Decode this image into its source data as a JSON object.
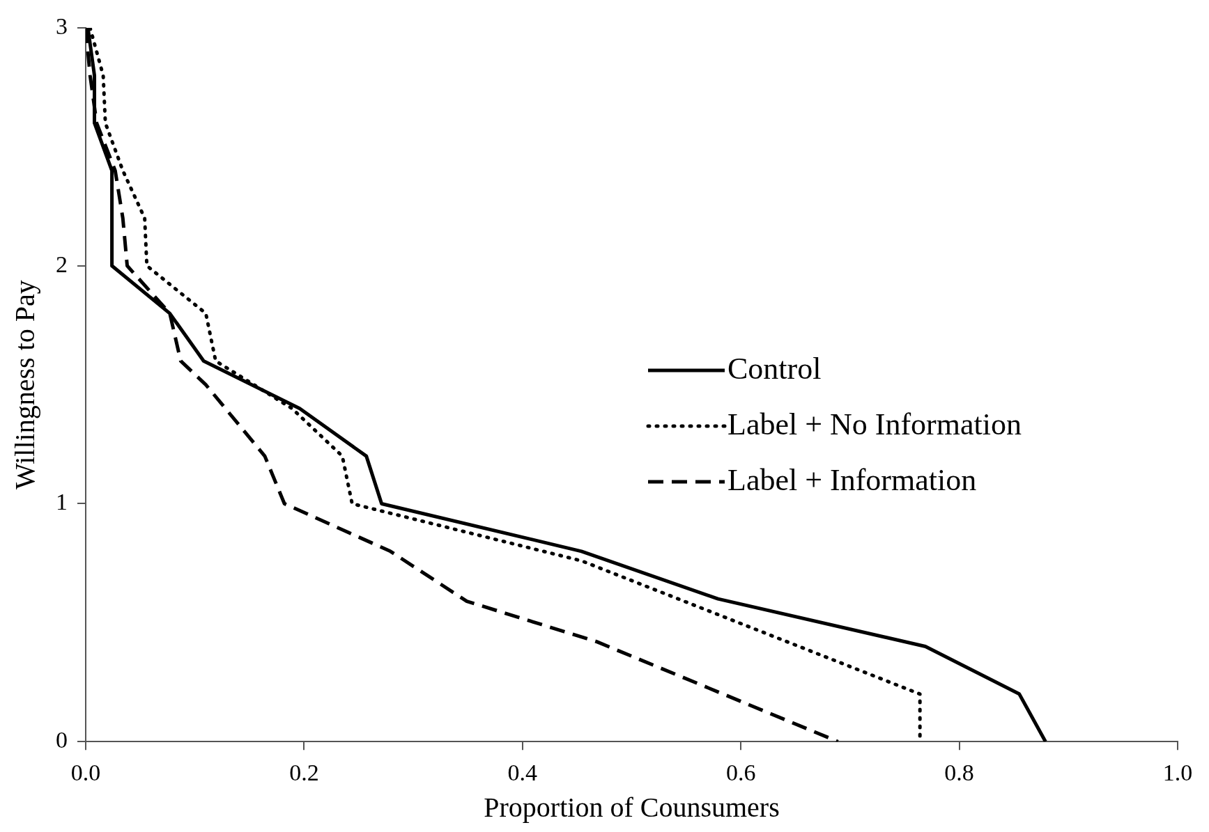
{
  "chart_data": {
    "type": "line",
    "xlabel": "Proportion of Counsumers",
    "ylabel": "Willingness to Pay",
    "xlim": [
      0,
      1
    ],
    "ylim": [
      0,
      3
    ],
    "xticks": [
      {
        "value": 0,
        "label": "0.0"
      },
      {
        "value": 0.2,
        "label": "0.2"
      },
      {
        "value": 0.4,
        "label": "0.4"
      },
      {
        "value": 0.6,
        "label": "0.6"
      },
      {
        "value": 0.8,
        "label": "0.8"
      },
      {
        "value": 1,
        "label": "1.0"
      }
    ],
    "yticks": [
      0,
      1,
      2,
      3
    ],
    "grid": false,
    "legend": "right",
    "marker": "none",
    "series": [
      {
        "name": "Control",
        "color": "#000000",
        "line_style": "solid",
        "x": [
          0.002,
          0.008,
          0.008,
          0.024,
          0.024,
          0.077,
          0.108,
          0.196,
          0.257,
          0.271,
          0.454,
          0.579,
          0.769,
          0.855,
          0.879
        ],
        "values": [
          3,
          2.8,
          2.6,
          2.4,
          2.0,
          1.8,
          1.6,
          1.4,
          1.2,
          1.0,
          0.8,
          0.6,
          0.4,
          0.2,
          0
        ]
      },
      {
        "name": "Label + No Information",
        "color": "#000000",
        "line_style": "dotted",
        "x": [
          0.004,
          0.016,
          0.018,
          0.034,
          0.054,
          0.056,
          0.11,
          0.119,
          0.189,
          0.235,
          0.244,
          0.454,
          0.764,
          0.764
        ],
        "values": [
          3,
          2.8,
          2.6,
          2.4,
          2.2,
          2.0,
          1.8,
          1.6,
          1.4,
          1.2,
          1.0,
          0.76,
          0.2,
          0
        ]
      },
      {
        "name": "Label + Information",
        "color": "#000000",
        "line_style": "dashed",
        "x": [
          0,
          0.004,
          0.01,
          0.027,
          0.034,
          0.038,
          0.077,
          0.087,
          0.11,
          0.164,
          0.182,
          0.279,
          0.349,
          0.468,
          0.689
        ],
        "values": [
          3,
          2.8,
          2.6,
          2.4,
          2.2,
          2.0,
          1.8,
          1.6,
          1.5,
          1.2,
          1.0,
          0.8,
          0.59,
          0.42,
          0
        ]
      }
    ]
  }
}
